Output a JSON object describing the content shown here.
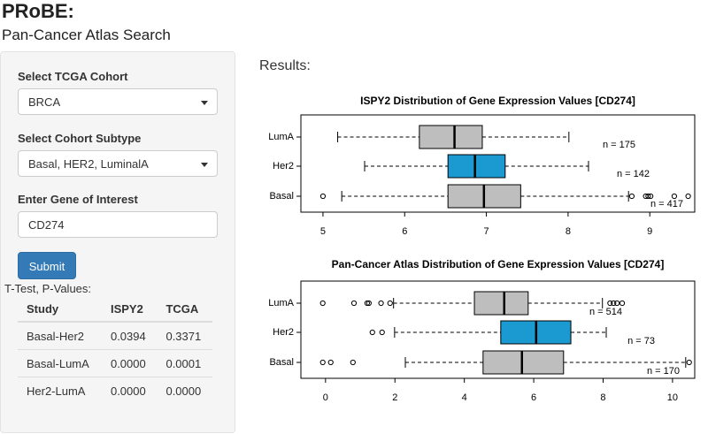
{
  "header": {
    "title": "PRoBE:",
    "subtitle": "Pan-Cancer Atlas Search"
  },
  "sidebar": {
    "cohort_label": "Select TCGA Cohort",
    "cohort_value": "BRCA",
    "subtype_label": "Select Cohort Subtype",
    "subtype_value": "Basal, HER2, LuminalA",
    "gene_label": "Enter Gene of Interest",
    "gene_value": "CD274",
    "button": "Submit",
    "table": {
      "caption": "T-Test, P-Values:",
      "headers": [
        "Study",
        "ISPY2",
        "TCGA"
      ],
      "rows": [
        [
          "Basal-Her2",
          "0.0394",
          "0.3371"
        ],
        [
          "Basal-LumA",
          "0.0000",
          "0.0001"
        ],
        [
          "Her2-LumA",
          "0.0000",
          "0.0000"
        ]
      ]
    }
  },
  "results_label": "Results:",
  "chart_data": [
    {
      "type": "boxplot",
      "title": "ISPY2 Distribution of Gene Expression Values [CD274]",
      "categories": [
        "LumA",
        "Her2",
        "Basal"
      ],
      "colors": [
        "#bebebe",
        "#1b9ad2",
        "#bebebe"
      ],
      "boxes": [
        {
          "low": 5.18,
          "q1": 6.18,
          "median": 6.61,
          "q3": 6.95,
          "high": 8.01,
          "outliers": []
        },
        {
          "low": 5.51,
          "q1": 6.53,
          "median": 6.86,
          "q3": 7.23,
          "high": 8.25,
          "outliers": []
        },
        {
          "low": 5.23,
          "q1": 6.53,
          "median": 6.97,
          "q3": 7.42,
          "high": 8.74,
          "outliers": [
            5.0,
            8.78,
            8.95,
            8.98,
            9.01,
            9.3,
            9.47
          ]
        }
      ],
      "n_labels": [
        "n = 175",
        "n = 142",
        "n = 417"
      ],
      "xlim": [
        4.73,
        9.55
      ],
      "xticks": [
        5,
        6,
        7,
        8,
        9
      ]
    },
    {
      "type": "boxplot",
      "title": "Pan-Cancer Atlas Distribution of Gene Expression Values [CD274]",
      "categories": [
        "LumA",
        "Her2",
        "Basal"
      ],
      "colors": [
        "#bebebe",
        "#1b9ad2",
        "#bebebe"
      ],
      "boxes": [
        {
          "low": 1.96,
          "q1": 4.29,
          "median": 5.15,
          "q3": 5.84,
          "high": 7.98,
          "outliers": [
            -0.08,
            0.82,
            1.2,
            1.25,
            1.6,
            1.86,
            8.2,
            8.3,
            8.4,
            8.55
          ]
        },
        {
          "low": 1.99,
          "q1": 5.05,
          "median": 6.07,
          "q3": 7.07,
          "high": 8.09,
          "outliers": [
            1.35,
            1.63
          ]
        },
        {
          "low": 2.3,
          "q1": 4.54,
          "median": 5.66,
          "q3": 6.86,
          "high": 10.38,
          "outliers": [
            -0.08,
            0.15,
            0.79,
            10.48
          ]
        }
      ],
      "n_labels": [
        "n = 514",
        "n = 73",
        "n = 170"
      ],
      "xlim": [
        -0.71,
        10.64
      ],
      "xticks": [
        0,
        2,
        4,
        6,
        8,
        10
      ]
    }
  ]
}
